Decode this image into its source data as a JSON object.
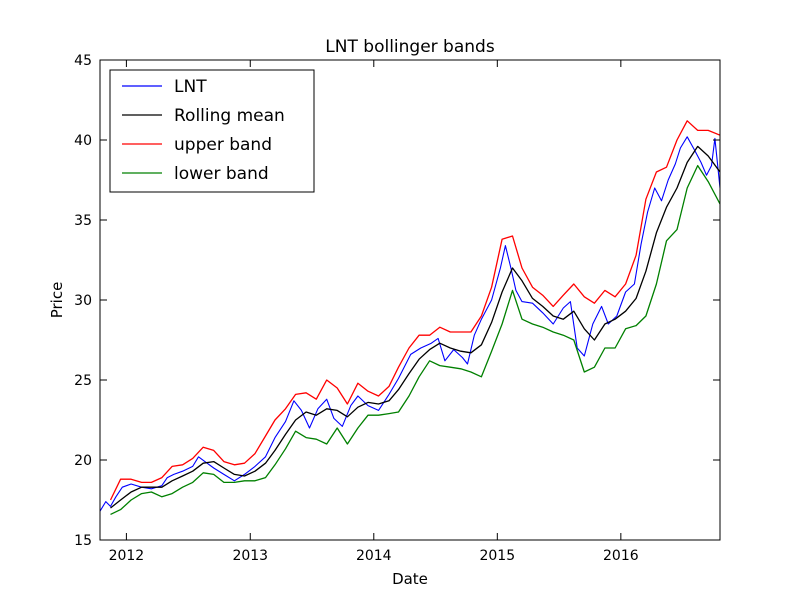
{
  "chart_data": {
    "type": "line",
    "title": "LNT bollinger bands",
    "xlabel": "Date",
    "ylabel": "Price",
    "xlim": [
      "2011-10-15",
      "2016-10-20"
    ],
    "ylim": [
      15,
      45
    ],
    "xticks": [
      {
        "label": "2012",
        "date": "2012-01-01"
      },
      {
        "label": "2013",
        "date": "2013-01-01"
      },
      {
        "label": "2014",
        "date": "2014-01-01"
      },
      {
        "label": "2015",
        "date": "2015-01-01"
      },
      {
        "label": "2016",
        "date": "2016-01-01"
      }
    ],
    "yticks": [
      15,
      20,
      25,
      30,
      35,
      40,
      45
    ],
    "grid": false,
    "legend_position": "top-left",
    "series": [
      {
        "name": "LNT",
        "color": "#0000ff",
        "points": [
          [
            "2011-10-15",
            16.8
          ],
          [
            "2011-11-01",
            17.4
          ],
          [
            "2011-11-15",
            17.1
          ],
          [
            "2011-12-01",
            17.7
          ],
          [
            "2011-12-20",
            18.3
          ],
          [
            "2012-01-15",
            18.5
          ],
          [
            "2012-02-15",
            18.3
          ],
          [
            "2012-03-15",
            18.2
          ],
          [
            "2012-04-15",
            18.4
          ],
          [
            "2012-05-01",
            18.9
          ],
          [
            "2012-05-20",
            19.1
          ],
          [
            "2012-06-15",
            19.3
          ],
          [
            "2012-07-15",
            19.6
          ],
          [
            "2012-08-01",
            20.2
          ],
          [
            "2012-08-20",
            19.9
          ],
          [
            "2012-09-15",
            19.5
          ],
          [
            "2012-10-15",
            19.1
          ],
          [
            "2012-11-15",
            18.7
          ],
          [
            "2012-12-15",
            19.1
          ],
          [
            "2013-01-15",
            19.6
          ],
          [
            "2013-02-15",
            20.2
          ],
          [
            "2013-03-15",
            21.4
          ],
          [
            "2013-04-15",
            22.4
          ],
          [
            "2013-05-10",
            23.7
          ],
          [
            "2013-06-01",
            23.1
          ],
          [
            "2013-06-25",
            22.0
          ],
          [
            "2013-07-20",
            23.2
          ],
          [
            "2013-08-15",
            23.8
          ],
          [
            "2013-09-05",
            22.6
          ],
          [
            "2013-09-30",
            22.1
          ],
          [
            "2013-10-25",
            23.4
          ],
          [
            "2013-11-15",
            24.0
          ],
          [
            "2013-12-15",
            23.4
          ],
          [
            "2014-01-15",
            23.1
          ],
          [
            "2014-02-15",
            24.1
          ],
          [
            "2014-03-15",
            25.1
          ],
          [
            "2014-04-20",
            26.6
          ],
          [
            "2014-05-20",
            27.0
          ],
          [
            "2014-06-20",
            27.3
          ],
          [
            "2014-07-10",
            27.6
          ],
          [
            "2014-07-30",
            26.2
          ],
          [
            "2014-08-25",
            26.9
          ],
          [
            "2014-09-20",
            26.4
          ],
          [
            "2014-10-05",
            26.0
          ],
          [
            "2014-10-25",
            27.8
          ],
          [
            "2014-11-15",
            28.8
          ],
          [
            "2014-12-15",
            30.0
          ],
          [
            "2015-01-10",
            32.0
          ],
          [
            "2015-01-25",
            33.4
          ],
          [
            "2015-02-10",
            32.0
          ],
          [
            "2015-02-25",
            30.6
          ],
          [
            "2015-03-15",
            29.9
          ],
          [
            "2015-04-15",
            29.8
          ],
          [
            "2015-05-15",
            29.2
          ],
          [
            "2015-06-15",
            28.5
          ],
          [
            "2015-07-15",
            29.5
          ],
          [
            "2015-08-05",
            29.9
          ],
          [
            "2015-08-25",
            27.0
          ],
          [
            "2015-09-15",
            26.5
          ],
          [
            "2015-10-10",
            28.5
          ],
          [
            "2015-11-05",
            29.6
          ],
          [
            "2015-11-25",
            28.5
          ],
          [
            "2015-12-20",
            29.0
          ],
          [
            "2016-01-15",
            30.5
          ],
          [
            "2016-02-10",
            31.0
          ],
          [
            "2016-03-01",
            33.5
          ],
          [
            "2016-03-20",
            35.5
          ],
          [
            "2016-04-10",
            37.0
          ],
          [
            "2016-04-30",
            36.2
          ],
          [
            "2016-05-20",
            37.5
          ],
          [
            "2016-06-10",
            38.5
          ],
          [
            "2016-06-25",
            39.5
          ],
          [
            "2016-07-15",
            40.2
          ],
          [
            "2016-08-05",
            39.4
          ],
          [
            "2016-08-25",
            38.6
          ],
          [
            "2016-09-10",
            37.8
          ],
          [
            "2016-09-25",
            38.4
          ],
          [
            "2016-10-05",
            40.1
          ],
          [
            "2016-10-20",
            37.0
          ]
        ]
      },
      {
        "name": "Rolling mean",
        "color": "#000000",
        "points": [
          [
            "2011-11-15",
            17.0
          ],
          [
            "2011-12-15",
            17.5
          ],
          [
            "2012-01-15",
            18.0
          ],
          [
            "2012-02-15",
            18.3
          ],
          [
            "2012-03-15",
            18.3
          ],
          [
            "2012-04-15",
            18.3
          ],
          [
            "2012-05-15",
            18.7
          ],
          [
            "2012-06-15",
            19.0
          ],
          [
            "2012-07-15",
            19.3
          ],
          [
            "2012-08-15",
            19.8
          ],
          [
            "2012-09-15",
            19.9
          ],
          [
            "2012-10-15",
            19.5
          ],
          [
            "2012-11-15",
            19.1
          ],
          [
            "2012-12-15",
            19.0
          ],
          [
            "2013-01-15",
            19.3
          ],
          [
            "2013-02-15",
            19.8
          ],
          [
            "2013-03-15",
            20.6
          ],
          [
            "2013-04-15",
            21.6
          ],
          [
            "2013-05-15",
            22.5
          ],
          [
            "2013-06-15",
            23.0
          ],
          [
            "2013-07-15",
            22.8
          ],
          [
            "2013-08-15",
            23.2
          ],
          [
            "2013-09-15",
            23.1
          ],
          [
            "2013-10-15",
            22.7
          ],
          [
            "2013-11-15",
            23.3
          ],
          [
            "2013-12-15",
            23.6
          ],
          [
            "2014-01-15",
            23.5
          ],
          [
            "2014-02-15",
            23.7
          ],
          [
            "2014-03-15",
            24.4
          ],
          [
            "2014-04-15",
            25.4
          ],
          [
            "2014-05-15",
            26.3
          ],
          [
            "2014-06-15",
            26.9
          ],
          [
            "2014-07-15",
            27.3
          ],
          [
            "2014-08-15",
            27.0
          ],
          [
            "2014-09-15",
            26.8
          ],
          [
            "2014-10-15",
            26.7
          ],
          [
            "2014-11-15",
            27.2
          ],
          [
            "2014-12-15",
            28.6
          ],
          [
            "2015-01-15",
            30.5
          ],
          [
            "2015-02-15",
            32.0
          ],
          [
            "2015-03-15",
            31.2
          ],
          [
            "2015-04-15",
            30.1
          ],
          [
            "2015-05-15",
            29.6
          ],
          [
            "2015-06-15",
            29.0
          ],
          [
            "2015-07-15",
            28.8
          ],
          [
            "2015-08-15",
            29.3
          ],
          [
            "2015-09-15",
            28.2
          ],
          [
            "2015-10-15",
            27.5
          ],
          [
            "2015-11-15",
            28.5
          ],
          [
            "2015-12-15",
            28.8
          ],
          [
            "2016-01-15",
            29.3
          ],
          [
            "2016-02-15",
            30.1
          ],
          [
            "2016-03-15",
            31.8
          ],
          [
            "2016-04-15",
            34.2
          ],
          [
            "2016-05-15",
            35.8
          ],
          [
            "2016-06-15",
            37.0
          ],
          [
            "2016-07-15",
            38.6
          ],
          [
            "2016-08-15",
            39.6
          ],
          [
            "2016-09-15",
            39.0
          ],
          [
            "2016-10-20",
            38.0
          ]
        ]
      },
      {
        "name": "upper band",
        "color": "#ff0000",
        "points": [
          [
            "2011-11-15",
            17.5
          ],
          [
            "2011-12-15",
            18.8
          ],
          [
            "2012-01-15",
            18.8
          ],
          [
            "2012-02-15",
            18.6
          ],
          [
            "2012-03-15",
            18.6
          ],
          [
            "2012-04-15",
            18.9
          ],
          [
            "2012-05-15",
            19.6
          ],
          [
            "2012-06-15",
            19.7
          ],
          [
            "2012-07-15",
            20.1
          ],
          [
            "2012-08-15",
            20.8
          ],
          [
            "2012-09-15",
            20.6
          ],
          [
            "2012-10-15",
            19.9
          ],
          [
            "2012-11-15",
            19.7
          ],
          [
            "2012-12-15",
            19.8
          ],
          [
            "2013-01-15",
            20.4
          ],
          [
            "2013-02-15",
            21.5
          ],
          [
            "2013-03-15",
            22.5
          ],
          [
            "2013-04-15",
            23.2
          ],
          [
            "2013-05-15",
            24.1
          ],
          [
            "2013-06-15",
            24.2
          ],
          [
            "2013-07-15",
            23.8
          ],
          [
            "2013-08-15",
            25.0
          ],
          [
            "2013-09-15",
            24.5
          ],
          [
            "2013-10-15",
            23.5
          ],
          [
            "2013-11-15",
            24.8
          ],
          [
            "2013-12-15",
            24.3
          ],
          [
            "2014-01-15",
            24.0
          ],
          [
            "2014-02-15",
            24.6
          ],
          [
            "2014-03-15",
            25.8
          ],
          [
            "2014-04-15",
            27.0
          ],
          [
            "2014-05-15",
            27.8
          ],
          [
            "2014-06-15",
            27.8
          ],
          [
            "2014-07-15",
            28.3
          ],
          [
            "2014-08-15",
            28.0
          ],
          [
            "2014-09-15",
            28.0
          ],
          [
            "2014-10-15",
            28.0
          ],
          [
            "2014-11-15",
            29.0
          ],
          [
            "2014-12-15",
            30.8
          ],
          [
            "2015-01-15",
            33.8
          ],
          [
            "2015-02-15",
            34.0
          ],
          [
            "2015-03-15",
            32.0
          ],
          [
            "2015-04-15",
            30.8
          ],
          [
            "2015-05-15",
            30.3
          ],
          [
            "2015-06-15",
            29.6
          ],
          [
            "2015-07-15",
            30.3
          ],
          [
            "2015-08-15",
            31.0
          ],
          [
            "2015-09-15",
            30.2
          ],
          [
            "2015-10-15",
            29.8
          ],
          [
            "2015-11-15",
            30.6
          ],
          [
            "2015-12-15",
            30.2
          ],
          [
            "2016-01-15",
            31.0
          ],
          [
            "2016-02-15",
            32.8
          ],
          [
            "2016-03-15",
            36.3
          ],
          [
            "2016-04-15",
            38.0
          ],
          [
            "2016-05-15",
            38.3
          ],
          [
            "2016-06-15",
            40.0
          ],
          [
            "2016-07-15",
            41.2
          ],
          [
            "2016-08-15",
            40.6
          ],
          [
            "2016-09-15",
            40.6
          ],
          [
            "2016-10-20",
            40.3
          ]
        ]
      },
      {
        "name": "lower band",
        "color": "#008000",
        "points": [
          [
            "2011-11-15",
            16.6
          ],
          [
            "2011-12-15",
            16.9
          ],
          [
            "2012-01-15",
            17.5
          ],
          [
            "2012-02-15",
            17.9
          ],
          [
            "2012-03-15",
            18.0
          ],
          [
            "2012-04-15",
            17.7
          ],
          [
            "2012-05-15",
            17.9
          ],
          [
            "2012-06-15",
            18.3
          ],
          [
            "2012-07-15",
            18.6
          ],
          [
            "2012-08-15",
            19.2
          ],
          [
            "2012-09-15",
            19.1
          ],
          [
            "2012-10-15",
            18.6
          ],
          [
            "2012-11-15",
            18.6
          ],
          [
            "2012-12-15",
            18.7
          ],
          [
            "2013-01-15",
            18.7
          ],
          [
            "2013-02-15",
            18.9
          ],
          [
            "2013-03-15",
            19.7
          ],
          [
            "2013-04-15",
            20.7
          ],
          [
            "2013-05-15",
            21.8
          ],
          [
            "2013-06-15",
            21.4
          ],
          [
            "2013-07-15",
            21.3
          ],
          [
            "2013-08-15",
            21.0
          ],
          [
            "2013-09-15",
            22.0
          ],
          [
            "2013-10-15",
            21.0
          ],
          [
            "2013-11-15",
            22.0
          ],
          [
            "2013-12-15",
            22.8
          ],
          [
            "2014-01-15",
            22.8
          ],
          [
            "2014-02-15",
            22.9
          ],
          [
            "2014-03-15",
            23.0
          ],
          [
            "2014-04-15",
            24.0
          ],
          [
            "2014-05-15",
            25.2
          ],
          [
            "2014-06-15",
            26.2
          ],
          [
            "2014-07-15",
            25.9
          ],
          [
            "2014-08-15",
            25.8
          ],
          [
            "2014-09-15",
            25.7
          ],
          [
            "2014-10-15",
            25.5
          ],
          [
            "2014-11-15",
            25.2
          ],
          [
            "2014-12-15",
            26.8
          ],
          [
            "2015-01-15",
            28.5
          ],
          [
            "2015-02-15",
            30.6
          ],
          [
            "2015-03-15",
            28.8
          ],
          [
            "2015-04-15",
            28.5
          ],
          [
            "2015-05-15",
            28.3
          ],
          [
            "2015-06-15",
            28.0
          ],
          [
            "2015-07-15",
            27.8
          ],
          [
            "2015-08-15",
            27.5
          ],
          [
            "2015-09-15",
            25.5
          ],
          [
            "2015-10-15",
            25.8
          ],
          [
            "2015-11-15",
            27.0
          ],
          [
            "2015-12-15",
            27.0
          ],
          [
            "2016-01-15",
            28.2
          ],
          [
            "2016-02-15",
            28.4
          ],
          [
            "2016-03-15",
            29.0
          ],
          [
            "2016-04-15",
            31.0
          ],
          [
            "2016-05-15",
            33.7
          ],
          [
            "2016-06-15",
            34.4
          ],
          [
            "2016-07-15",
            37.0
          ],
          [
            "2016-08-15",
            38.4
          ],
          [
            "2016-09-15",
            37.4
          ],
          [
            "2016-10-20",
            36.0
          ]
        ]
      }
    ]
  }
}
